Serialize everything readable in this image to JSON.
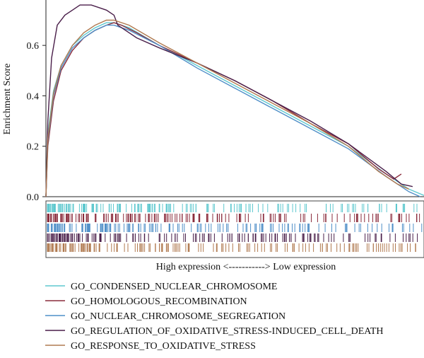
{
  "chart_data": {
    "type": "line",
    "ylabel": "Enrichment Score",
    "xlabel": "High expression <-----------> Low expression",
    "y_ticks": [
      "0.0",
      "0.2",
      "0.4",
      "0.6"
    ],
    "ylim": [
      0,
      0.78
    ],
    "xlim": [
      0,
      1
    ],
    "grid": false,
    "legend_position": "bottom",
    "series": [
      {
        "name": "GO_CONDENSED_NUCLEAR_CHROMOSOME",
        "color": "#5ec8cf",
        "points": [
          [
            0,
            0
          ],
          [
            0.005,
            0.25
          ],
          [
            0.02,
            0.42
          ],
          [
            0.04,
            0.52
          ],
          [
            0.07,
            0.6
          ],
          [
            0.1,
            0.64
          ],
          [
            0.13,
            0.67
          ],
          [
            0.16,
            0.69
          ],
          [
            0.18,
            0.69
          ],
          [
            0.22,
            0.67
          ],
          [
            0.3,
            0.6
          ],
          [
            0.4,
            0.52
          ],
          [
            0.5,
            0.44
          ],
          [
            0.6,
            0.36
          ],
          [
            0.7,
            0.28
          ],
          [
            0.8,
            0.2
          ],
          [
            0.9,
            0.09
          ],
          [
            0.96,
            0.03
          ],
          [
            1.0,
            0.005
          ]
        ]
      },
      {
        "name": "GO_HOMOLOGOUS_RECOMBINATION",
        "color": "#8a2c3c",
        "points": [
          [
            0,
            0
          ],
          [
            0.005,
            0.2
          ],
          [
            0.02,
            0.38
          ],
          [
            0.04,
            0.5
          ],
          [
            0.07,
            0.58
          ],
          [
            0.1,
            0.63
          ],
          [
            0.13,
            0.66
          ],
          [
            0.16,
            0.68
          ],
          [
            0.18,
            0.69
          ],
          [
            0.2,
            0.68
          ],
          [
            0.24,
            0.65
          ],
          [
            0.3,
            0.6
          ],
          [
            0.4,
            0.53
          ],
          [
            0.5,
            0.46
          ],
          [
            0.6,
            0.38
          ],
          [
            0.7,
            0.29
          ],
          [
            0.8,
            0.21
          ],
          [
            0.88,
            0.11
          ],
          [
            0.92,
            0.07
          ],
          [
            0.94,
            0.09
          ]
        ]
      },
      {
        "name": "GO_NUCLEAR_CHROMOSOME_SEGREGATION",
        "color": "#4f8fc8",
        "points": [
          [
            0,
            0
          ],
          [
            0.005,
            0.22
          ],
          [
            0.02,
            0.4
          ],
          [
            0.04,
            0.51
          ],
          [
            0.07,
            0.59
          ],
          [
            0.1,
            0.63
          ],
          [
            0.13,
            0.66
          ],
          [
            0.16,
            0.68
          ],
          [
            0.18,
            0.68
          ],
          [
            0.22,
            0.66
          ],
          [
            0.3,
            0.6
          ],
          [
            0.4,
            0.51
          ],
          [
            0.5,
            0.43
          ],
          [
            0.6,
            0.35
          ],
          [
            0.7,
            0.27
          ],
          [
            0.8,
            0.19
          ],
          [
            0.9,
            0.08
          ],
          [
            0.96,
            0.02
          ],
          [
            0.99,
            0.0
          ]
        ]
      },
      {
        "name": "GO_REGULATION_OF_OXIDATIVE_STRESS-INDUCED_CELL_DEATH",
        "color": "#4a1f4a",
        "points": [
          [
            0,
            0
          ],
          [
            0.005,
            0.3
          ],
          [
            0.015,
            0.55
          ],
          [
            0.03,
            0.68
          ],
          [
            0.05,
            0.72
          ],
          [
            0.07,
            0.74
          ],
          [
            0.09,
            0.76
          ],
          [
            0.12,
            0.76
          ],
          [
            0.14,
            0.75
          ],
          [
            0.16,
            0.74
          ],
          [
            0.18,
            0.72
          ],
          [
            0.19,
            0.68
          ],
          [
            0.24,
            0.63
          ],
          [
            0.3,
            0.59
          ],
          [
            0.4,
            0.53
          ],
          [
            0.5,
            0.46
          ],
          [
            0.6,
            0.38
          ],
          [
            0.7,
            0.3
          ],
          [
            0.8,
            0.21
          ],
          [
            0.9,
            0.1
          ],
          [
            0.94,
            0.05
          ],
          [
            0.97,
            0.04
          ]
        ]
      },
      {
        "name": "GO_RESPONSE_TO_OXIDATIVE_STRESS",
        "color": "#b07a50",
        "points": [
          [
            0,
            0
          ],
          [
            0.005,
            0.23
          ],
          [
            0.02,
            0.41
          ],
          [
            0.04,
            0.52
          ],
          [
            0.07,
            0.6
          ],
          [
            0.1,
            0.65
          ],
          [
            0.13,
            0.68
          ],
          [
            0.16,
            0.7
          ],
          [
            0.18,
            0.7
          ],
          [
            0.22,
            0.68
          ],
          [
            0.3,
            0.61
          ],
          [
            0.4,
            0.53
          ],
          [
            0.5,
            0.45
          ],
          [
            0.6,
            0.37
          ],
          [
            0.7,
            0.29
          ],
          [
            0.8,
            0.2
          ],
          [
            0.88,
            0.1
          ],
          [
            0.93,
            0.05
          ],
          [
            0.96,
            0.03
          ]
        ]
      }
    ]
  }
}
